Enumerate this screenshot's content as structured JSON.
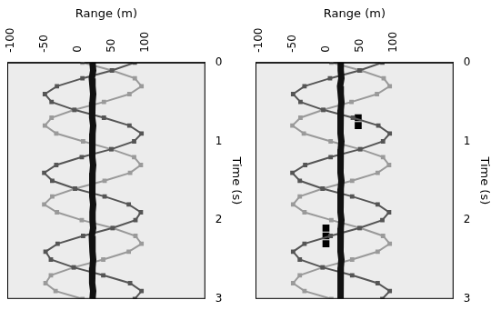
{
  "chart_data": [
    {
      "type": "scatter",
      "xlabel": "Range (m)",
      "ylabel": "Time (s)",
      "xlim": [
        -125,
        170
      ],
      "xticks": [
        -100,
        -50,
        0,
        50,
        100
      ],
      "ylim": [
        0,
        3
      ],
      "yticks": [
        0,
        1,
        2,
        3
      ],
      "grid": false,
      "series": [
        {
          "color": "#111111",
          "marker": "square",
          "line_style": "solid",
          "x": [
            2,
            3,
            1,
            2,
            3,
            2,
            1,
            2,
            3,
            2,
            2,
            1,
            2,
            3,
            2,
            2,
            1,
            2,
            3,
            2,
            2,
            3,
            1,
            2,
            2,
            3,
            2,
            1,
            2,
            3,
            2
          ],
          "y": [
            0,
            0.1,
            0.2,
            0.3,
            0.4,
            0.5,
            0.6,
            0.7,
            0.8,
            0.9,
            1,
            1.1,
            1.2,
            1.3,
            1.4,
            1.5,
            1.6,
            1.7,
            1.8,
            1.9,
            2,
            2.1,
            2.2,
            2.3,
            2.4,
            2.5,
            2.6,
            2.7,
            2.8,
            2.9,
            3
          ]
        },
        {
          "color": "#555555",
          "marker": "square",
          "line_style": "solid",
          "x": [
            65,
            31,
            -13,
            -51,
            -69,
            -59,
            -25,
            19,
            57,
            75,
            64,
            30,
            -14,
            -52,
            -70,
            -58,
            -24,
            20,
            56,
            74,
            66,
            32,
            -12,
            -50,
            -68,
            -60,
            -26,
            18,
            58,
            75,
            65
          ],
          "y": [
            0,
            0.1,
            0.2,
            0.3,
            0.4,
            0.5,
            0.6,
            0.7,
            0.8,
            0.9,
            1,
            1.1,
            1.2,
            1.3,
            1.4,
            1.5,
            1.6,
            1.7,
            1.8,
            1.9,
            2,
            2.1,
            2.2,
            2.3,
            2.4,
            2.5,
            2.6,
            2.7,
            2.8,
            2.9,
            3
          ]
        },
        {
          "color": "#9a9a9a",
          "marker": "square",
          "line_style": "solid",
          "x": [
            -13,
            31,
            65,
            75,
            57,
            19,
            -25,
            -59,
            -69,
            -52,
            -12,
            30,
            64,
            74,
            58,
            20,
            -24,
            -58,
            -70,
            -51,
            -14,
            32,
            66,
            75,
            56,
            18,
            -26,
            -60,
            -68,
            -53,
            -13
          ],
          "y": [
            0,
            0.1,
            0.2,
            0.3,
            0.4,
            0.5,
            0.6,
            0.7,
            0.8,
            0.9,
            1,
            1.1,
            1.2,
            1.3,
            1.4,
            1.5,
            1.6,
            1.7,
            1.8,
            1.9,
            2,
            2.1,
            2.2,
            2.3,
            2.4,
            2.5,
            2.6,
            2.7,
            2.8,
            2.9,
            3
          ]
        }
      ]
    },
    {
      "type": "scatter",
      "xlabel": "Range (m)",
      "ylabel": "Time (s)",
      "xlim": [
        -125,
        170
      ],
      "xticks": [
        -100,
        -50,
        0,
        50,
        100
      ],
      "ylim": [
        0,
        3
      ],
      "yticks": [
        0,
        1,
        2,
        3
      ],
      "grid": false,
      "series": [
        {
          "color": "#111111",
          "marker": "square",
          "line_style": "solid",
          "x": [
            2,
            2,
            3,
            1,
            2,
            3,
            2,
            2,
            1,
            2,
            3,
            2,
            2,
            1,
            2,
            3,
            2,
            2,
            1,
            2,
            3,
            2,
            2,
            1,
            2,
            3,
            2,
            2,
            1,
            2,
            2
          ],
          "y": [
            0,
            0.1,
            0.2,
            0.3,
            0.4,
            0.5,
            0.6,
            0.7,
            0.8,
            0.9,
            1,
            1.1,
            1.2,
            1.3,
            1.4,
            1.5,
            1.6,
            1.7,
            1.8,
            1.9,
            2,
            2.1,
            2.2,
            2.3,
            2.4,
            2.5,
            2.6,
            2.7,
            2.8,
            2.9,
            3
          ]
        },
        {
          "color": "#555555",
          "marker": "square",
          "line_style": "solid",
          "x": [
            64,
            30,
            -14,
            -52,
            -69,
            -58,
            -24,
            20,
            58,
            75,
            65,
            31,
            -13,
            -51,
            -70,
            -59,
            -25,
            19,
            57,
            74,
            64,
            30,
            -13,
            -52,
            -69,
            -59,
            -25,
            19,
            57,
            75,
            64
          ],
          "y": [
            0,
            0.1,
            0.2,
            0.3,
            0.4,
            0.5,
            0.6,
            0.7,
            0.8,
            0.9,
            1,
            1.1,
            1.2,
            1.3,
            1.4,
            1.5,
            1.6,
            1.7,
            1.8,
            1.9,
            2,
            2.1,
            2.2,
            2.3,
            2.4,
            2.5,
            2.6,
            2.7,
            2.8,
            2.9,
            3
          ]
        },
        {
          "color": "#9a9a9a",
          "marker": "square",
          "line_style": "solid",
          "x": [
            -12,
            32,
            66,
            75,
            56,
            18,
            -24,
            -58,
            -70,
            -53,
            -13,
            31,
            65,
            74,
            57,
            19,
            -25,
            -59,
            -69,
            -52,
            -12,
            31,
            65,
            75,
            57,
            19,
            -25,
            -59,
            -69,
            -52,
            -12
          ],
          "y": [
            0,
            0.1,
            0.2,
            0.3,
            0.4,
            0.5,
            0.6,
            0.7,
            0.8,
            0.9,
            1,
            1.1,
            1.2,
            1.3,
            1.4,
            1.5,
            1.6,
            1.7,
            1.8,
            1.9,
            2,
            2.1,
            2.2,
            2.3,
            2.4,
            2.5,
            2.6,
            2.7,
            2.8,
            2.9,
            3
          ]
        },
        {
          "color": "#000000",
          "marker": "square",
          "line_style": "none",
          "x": [
            28,
            28,
            -20,
            -20,
            -20
          ],
          "y": [
            0.7,
            0.8,
            2.1,
            2.2,
            2.3
          ]
        }
      ]
    }
  ]
}
